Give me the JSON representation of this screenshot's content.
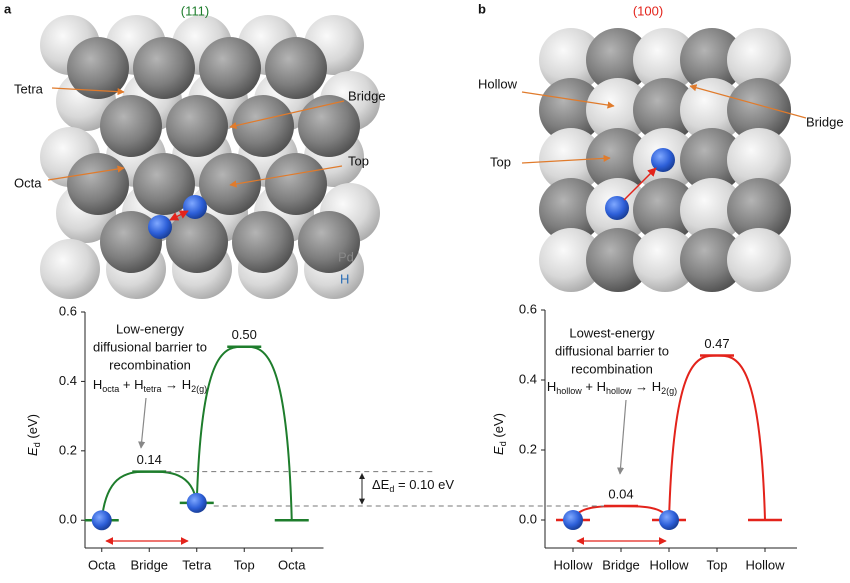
{
  "figure": {
    "panel_a": {
      "letter": "a",
      "facet": "(111)",
      "sites": [
        "Tetra",
        "Bridge",
        "Octa",
        "Top"
      ],
      "legend": [
        "Pd",
        "H"
      ],
      "annotation": [
        "Low-energy",
        "diffusional barrier to",
        "recombination"
      ],
      "formula": [
        "H",
        "octa",
        " + H",
        "tetra",
        " → H",
        "2(g)"
      ]
    },
    "panel_b": {
      "letter": "b",
      "facet": "(100)",
      "sites": [
        "Hollow",
        "Bridge",
        "Top"
      ],
      "annotation": [
        "Lowest-energy",
        "diffusional barrier to",
        "recombination"
      ],
      "formula": [
        "H",
        "hollow",
        " + H",
        "hollow",
        " → H",
        "2(g)"
      ]
    },
    "delta": [
      "ΔE",
      "d",
      " = 0.10 eV"
    ]
  },
  "chart_data": [
    {
      "type": "line",
      "ylabel": [
        "E",
        "d",
        " (eV)"
      ],
      "categories": [
        "Octa",
        "Bridge",
        "Tetra",
        "Top",
        "Octa"
      ],
      "values": [
        0,
        0.14,
        0.05,
        0.5,
        0
      ],
      "value_labels": [
        null,
        "0.14",
        null,
        "0.50",
        null
      ],
      "color": "#1e7d2c",
      "ylim": [
        -0.08,
        0.6
      ],
      "yticks": [
        {
          "value": 0,
          "label": "0.0"
        },
        0.2,
        0.4,
        0.6
      ]
    },
    {
      "type": "line",
      "ylabel": [
        "E",
        "d",
        " (eV)"
      ],
      "categories": [
        "Hollow",
        "Bridge",
        "Hollow",
        "Top",
        "Hollow"
      ],
      "values": [
        0,
        0.04,
        0,
        0.47,
        0
      ],
      "value_labels": [
        null,
        "0.04",
        null,
        "0.47",
        null
      ],
      "color": "#e3231b",
      "ylim": [
        -0.08,
        0.6
      ],
      "yticks": [
        {
          "value": 0,
          "label": "0.0"
        },
        0.2,
        0.4,
        0.6
      ]
    }
  ]
}
